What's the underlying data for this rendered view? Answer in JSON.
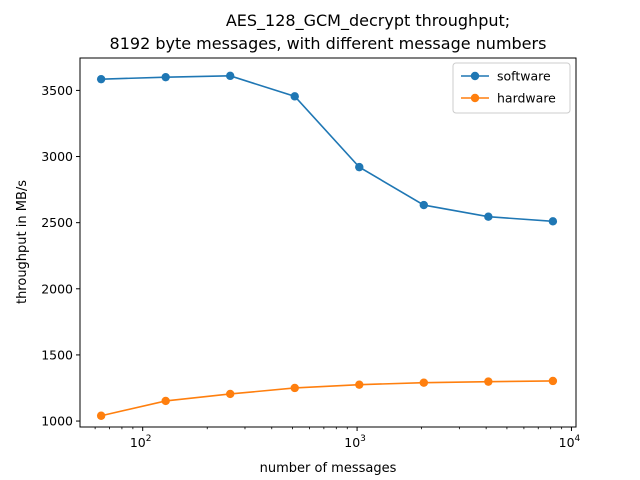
{
  "chart_data": {
    "type": "line",
    "title": "AES_128_GCM_decrypt throughput;",
    "subtitle": "8192 byte messages, with different message numbers",
    "xlabel": "number of messages",
    "ylabel": "throughput in MB/s",
    "xscale": "log",
    "xlim": [
      51,
      10500
    ],
    "ylim": [
      955,
      3745
    ],
    "x": [
      64,
      128,
      256,
      512,
      1024,
      2048,
      4096,
      8192
    ],
    "x_ticks": [
      {
        "value": 100,
        "base": "10",
        "exp": "2"
      },
      {
        "value": 1000,
        "base": "10",
        "exp": "3"
      },
      {
        "value": 10000,
        "base": "10",
        "exp": "4"
      }
    ],
    "y_ticks": [
      1000,
      1500,
      2000,
      2500,
      3000,
      3500
    ],
    "grid": false,
    "legend_position": "top-right",
    "series": [
      {
        "name": "software",
        "color": "#1f77b4",
        "marker": "circle",
        "values": [
          3585,
          3600,
          3610,
          3455,
          2920,
          2633,
          2545,
          2510
        ]
      },
      {
        "name": "hardware",
        "color": "#ff7f0e",
        "marker": "circle",
        "values": [
          1040,
          1152,
          1205,
          1250,
          1275,
          1290,
          1298,
          1303
        ]
      }
    ]
  }
}
